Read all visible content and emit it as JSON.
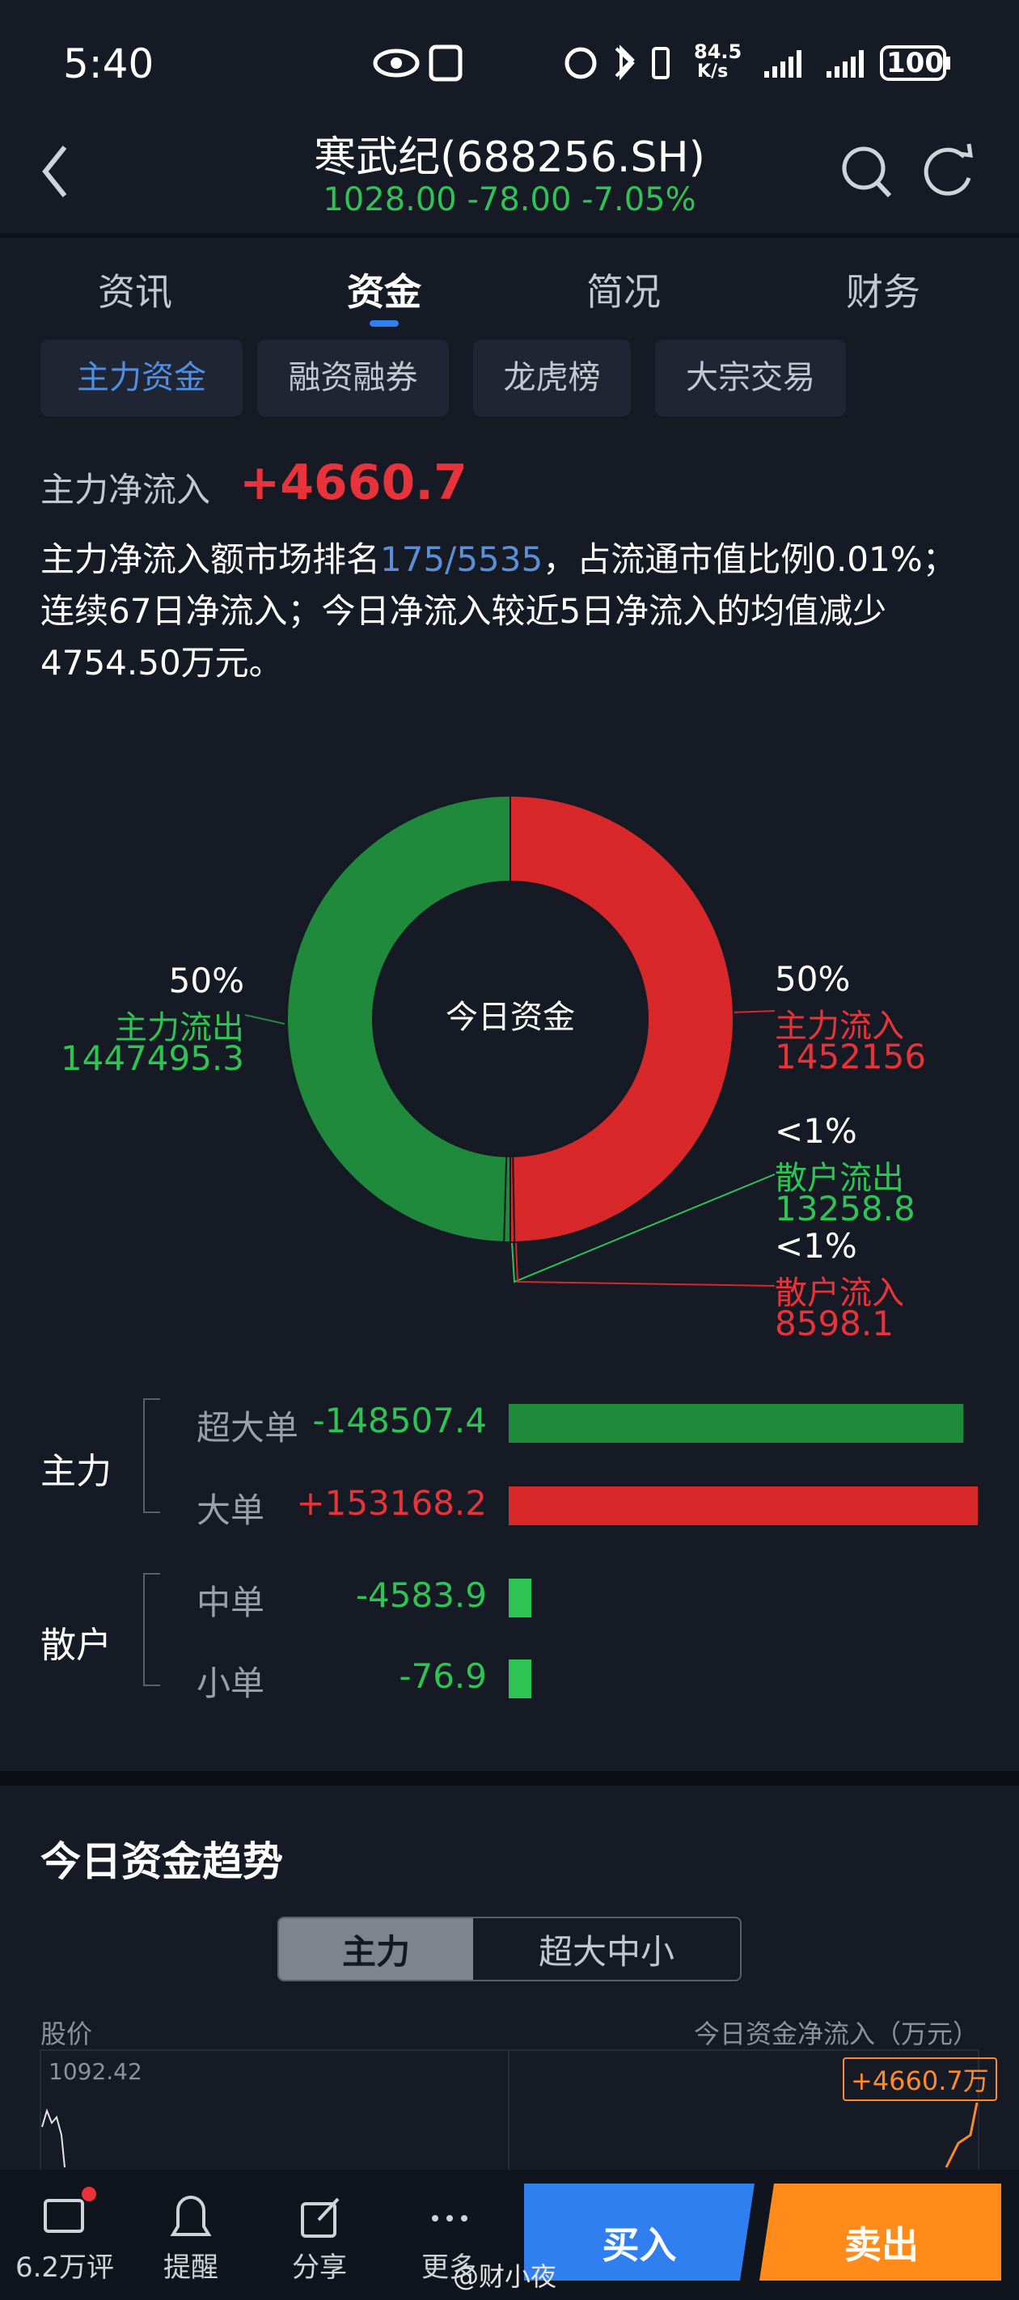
{
  "status_bar": {
    "time": "5:40",
    "net_speed": "84.5",
    "net_unit": "K/s",
    "battery": "100"
  },
  "header": {
    "title": "寒武纪(688256.SH)",
    "quote": "1028.00 -78.00 -7.05%"
  },
  "tabs": [
    "资讯",
    "资金",
    "简况",
    "财务"
  ],
  "active_tab": 1,
  "subtabs": [
    "主力资金",
    "融资融券",
    "龙虎榜",
    "大宗交易"
  ],
  "active_subtab": 0,
  "summary": {
    "label": "主力净流入",
    "value": "+4660.7",
    "text_parts": [
      "主力净流入额市场排名",
      "175/5535",
      "，占流通市值比例0.01%；连续67日净流入；今日净流入较近5日净流入的均值减少4754.50万元。"
    ]
  },
  "donut": {
    "center_label": "今日资金",
    "segments": [
      {
        "name": "主力流入",
        "value": 1452156,
        "percent_label": "50%",
        "color": "#d8282a"
      },
      {
        "name": "散户流入",
        "value": 8598.1,
        "percent_label": "<1%",
        "color": "#d8282a"
      },
      {
        "name": "散户流出",
        "value": 13258.8,
        "percent_label": "<1%",
        "color": "#1f8a3c"
      },
      {
        "name": "主力流出",
        "value": 1447495.3,
        "percent_label": "50%",
        "color": "#1f8a3c"
      }
    ]
  },
  "flows": {
    "groups": [
      {
        "name": "主力",
        "rows": [
          {
            "name": "超大单",
            "value": -148507.4,
            "color": "#1f8a3c"
          },
          {
            "name": "大单",
            "value": 153168.2,
            "value_label": "+153168.2",
            "color": "#d8282a"
          }
        ]
      },
      {
        "name": "散户",
        "rows": [
          {
            "name": "中单",
            "value": -4583.9,
            "color": "#2ec453"
          },
          {
            "name": "小单",
            "value": -76.9,
            "color": "#2ec453"
          }
        ]
      }
    ]
  },
  "trend": {
    "title": "今日资金趋势",
    "toggle": [
      "主力",
      "超大中小"
    ],
    "left_axis_label": "股价",
    "right_axis_label": "今日资金净流入（万元）",
    "price_top": "1092.42",
    "flow_label": "+4660.7万"
  },
  "bottom_nav": {
    "items": [
      "6.2万评",
      "提醒",
      "分享",
      "更多"
    ],
    "buy": "买入",
    "sell": "卖出",
    "watermark": "@财小夜"
  }
}
